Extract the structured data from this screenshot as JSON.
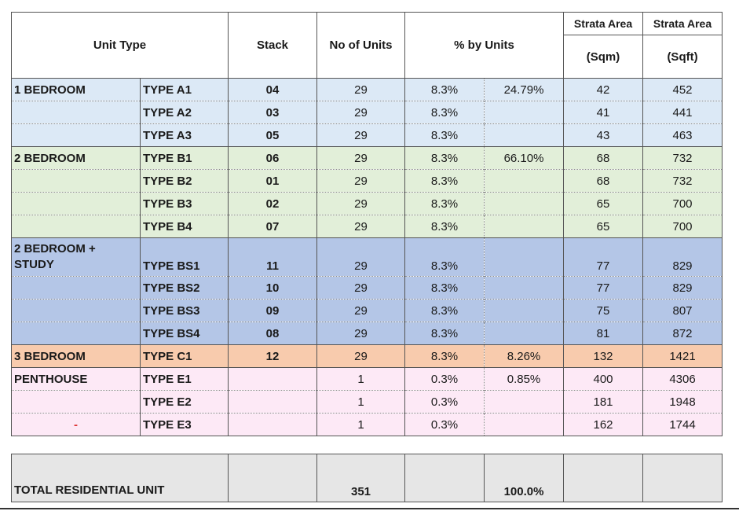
{
  "header": {
    "unit_type": "Unit Type",
    "stack": "Stack",
    "no_of_units": "No of Units",
    "pct_by_units": "% by Units",
    "strata_area": "Strata Area",
    "sqm": "(Sqm)",
    "sqft": "(Sqft)"
  },
  "colors": {
    "one_bedroom": "#dce9f6",
    "two_bedroom": "#e2efd9",
    "two_bedroom_study": "#b4c6e7",
    "three_bedroom": "#f8cbad",
    "penthouse": "#fde9f6",
    "total": "#e6e6e6"
  },
  "rows": [
    {
      "category": "1 BEDROOM",
      "type": "TYPE A1",
      "stack": "04",
      "units": "29",
      "pct": "8.3%",
      "group_pct": "24.79%",
      "sqm": "42",
      "sqft": "452"
    },
    {
      "category": "",
      "type": "TYPE A2",
      "stack": "03",
      "units": "29",
      "pct": "8.3%",
      "group_pct": "",
      "sqm": "41",
      "sqft": "441"
    },
    {
      "category": "",
      "type": "TYPE A3",
      "stack": "05",
      "units": "29",
      "pct": "8.3%",
      "group_pct": "",
      "sqm": "43",
      "sqft": "463"
    },
    {
      "category": "2 BEDROOM",
      "type": "TYPE B1",
      "stack": "06",
      "units": "29",
      "pct": "8.3%",
      "group_pct": "66.10%",
      "sqm": "68",
      "sqft": "732"
    },
    {
      "category": "",
      "type": "TYPE B2",
      "stack": "01",
      "units": "29",
      "pct": "8.3%",
      "group_pct": "",
      "sqm": "68",
      "sqft": "732"
    },
    {
      "category": "",
      "type": "TYPE B3",
      "stack": "02",
      "units": "29",
      "pct": "8.3%",
      "group_pct": "",
      "sqm": "65",
      "sqft": "700"
    },
    {
      "category": "",
      "type": "TYPE B4",
      "stack": "07",
      "units": "29",
      "pct": "8.3%",
      "group_pct": "",
      "sqm": "65",
      "sqft": "700"
    },
    {
      "category": "2 BEDROOM + STUDY",
      "type": "TYPE BS1",
      "stack": "11",
      "units": "29",
      "pct": "8.3%",
      "group_pct": "",
      "sqm": "77",
      "sqft": "829"
    },
    {
      "category": "",
      "type": "TYPE BS2",
      "stack": "10",
      "units": "29",
      "pct": "8.3%",
      "group_pct": "",
      "sqm": "77",
      "sqft": "829"
    },
    {
      "category": "",
      "type": "TYPE BS3",
      "stack": "09",
      "units": "29",
      "pct": "8.3%",
      "group_pct": "",
      "sqm": "75",
      "sqft": "807"
    },
    {
      "category": "",
      "type": "TYPE BS4",
      "stack": "08",
      "units": "29",
      "pct": "8.3%",
      "group_pct": "",
      "sqm": "81",
      "sqft": "872"
    },
    {
      "category": "3 BEDROOM",
      "type": "TYPE C1",
      "stack": "12",
      "units": "29",
      "pct": "8.3%",
      "group_pct": "8.26%",
      "sqm": "132",
      "sqft": "1421"
    },
    {
      "category": "PENTHOUSE",
      "type": "TYPE E1",
      "stack": "",
      "units": "1",
      "pct": "0.3%",
      "group_pct": "0.85%",
      "sqm": "400",
      "sqft": "4306"
    },
    {
      "category": "",
      "type": "TYPE E2",
      "stack": "",
      "units": "1",
      "pct": "0.3%",
      "group_pct": "",
      "sqm": "181",
      "sqft": "1948"
    },
    {
      "category": "-",
      "type": "TYPE E3",
      "stack": "",
      "units": "1",
      "pct": "0.3%",
      "group_pct": "",
      "sqm": "162",
      "sqft": "1744"
    }
  ],
  "total": {
    "label": "TOTAL RESIDENTIAL UNIT",
    "units": "351",
    "pct": "100.0%"
  }
}
